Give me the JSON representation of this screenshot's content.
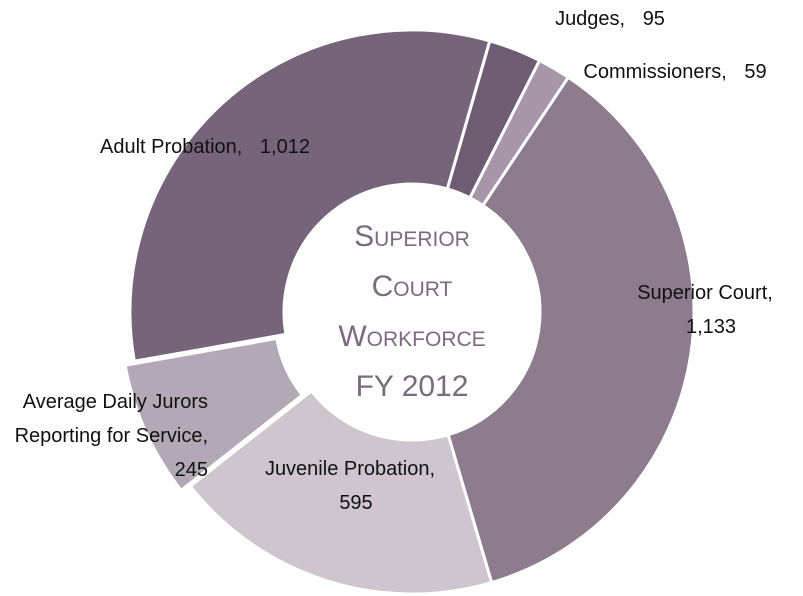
{
  "chart_data": {
    "type": "donut",
    "title": [
      "Superior",
      "Court",
      "Workforce",
      "FY 2012"
    ],
    "categories": [
      "Judges,",
      "Commissioners,",
      "Superior Court,",
      "Juvenile Probation,",
      "Average Daily Jurors Reporting for Service,",
      "Adult Probation,"
    ],
    "values": [
      95,
      59,
      1133,
      595,
      245,
      1012
    ],
    "value_labels": [
      "95",
      "59",
      "1,133",
      "595",
      "245",
      "1,012"
    ],
    "colors": [
      "#6e5d72",
      "#a696a8",
      "#8d7b8e",
      "#cec5cf",
      "#b3a8b5",
      "#76657a"
    ]
  }
}
